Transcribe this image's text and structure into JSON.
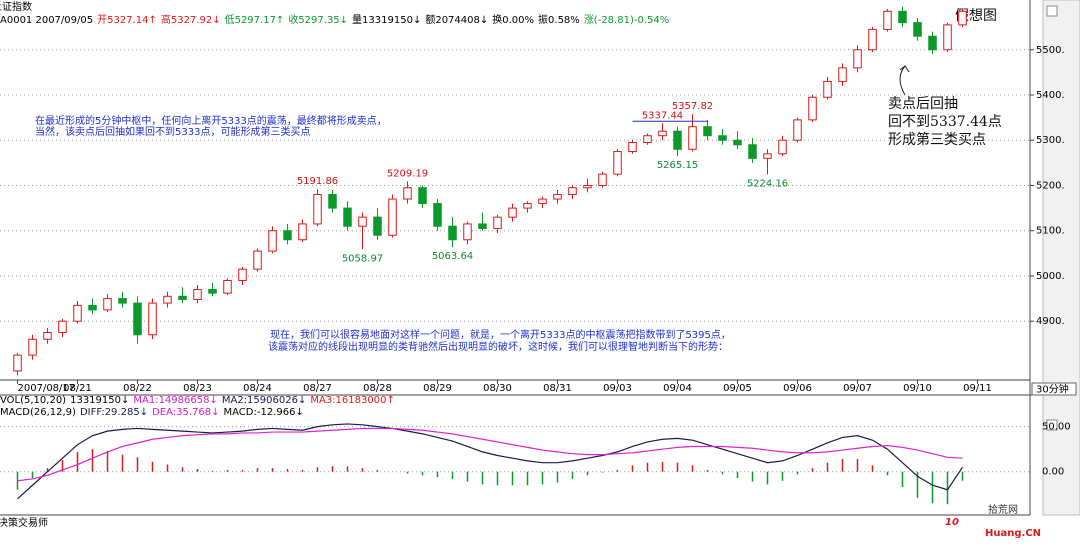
{
  "chart_data": [
    {
      "type": "candlestick",
      "title": "上证指数",
      "info": [
        "A0001 2007/09/05",
        "开5327.14↑",
        "高5327.92↓",
        "低5297.17↑",
        "收5297.35↓",
        "量13319150↓",
        "额2074408↓",
        "换0.00%",
        "振0.58%",
        "涨(-28.81)-0.54%"
      ],
      "x": [
        "2007/08/17",
        null,
        null,
        null,
        "08/21",
        null,
        null,
        null,
        "08/22",
        null,
        null,
        null,
        "08/23",
        null,
        null,
        null,
        "08/24",
        null,
        null,
        null,
        "08/27",
        null,
        null,
        null,
        "08/28",
        null,
        null,
        null,
        "08/29",
        null,
        null,
        null,
        "08/30",
        null,
        null,
        null,
        "08/31",
        null,
        null,
        null,
        "09/03",
        null,
        null,
        null,
        "09/04",
        null,
        null,
        null,
        "09/05",
        null,
        null,
        null,
        "09/06",
        null,
        null,
        null,
        "09/07",
        null,
        null,
        null,
        "09/10",
        null,
        null,
        null,
        "09/11",
        null,
        null,
        null
      ],
      "open": [
        4790,
        4825,
        4860,
        4875,
        4900,
        4935,
        4925,
        4950,
        4940,
        4870,
        4940,
        4955,
        4948,
        4970,
        4962,
        4990,
        5015,
        5055,
        5100,
        5080,
        5115,
        5180,
        5150,
        5110,
        5130,
        5090,
        5170,
        5195,
        5160,
        5110,
        5080,
        5115,
        5105,
        5130,
        5150,
        5160,
        5170,
        5180,
        5195,
        5200,
        5225,
        5275,
        5295,
        5310,
        5320,
        5280,
        5330,
        5310,
        5300,
        5290,
        5260,
        5270,
        5300,
        5345,
        5395,
        5430,
        5460,
        5500,
        5545,
        5585,
        5560,
        5530,
        5500,
        5555,
        null,
        null,
        null,
        null
      ],
      "high": [
        4830,
        4870,
        4885,
        4905,
        4945,
        4950,
        4960,
        4965,
        4955,
        4950,
        4965,
        4975,
        4980,
        4985,
        4995,
        5020,
        5060,
        5110,
        5115,
        5125,
        5191.86,
        5190,
        5165,
        5140,
        5150,
        5180,
        5209.19,
        5200,
        5170,
        5130,
        5120,
        5140,
        5135,
        5160,
        5165,
        5175,
        5190,
        5200,
        5215,
        5230,
        5280,
        5300,
        5315,
        5337.44,
        5330,
        5357.82,
        5345,
        5325,
        5320,
        5305,
        5280,
        5310,
        5350,
        5400,
        5440,
        5470,
        5510,
        5550,
        5590,
        5595,
        5570,
        5540,
        5560,
        5590,
        null,
        null,
        null,
        null
      ],
      "low": [
        4780,
        4815,
        4850,
        4865,
        4895,
        4915,
        4920,
        4930,
        4850,
        4860,
        4930,
        4940,
        4940,
        4955,
        4958,
        4980,
        5010,
        5050,
        5070,
        5075,
        5110,
        5140,
        5100,
        5058.97,
        5080,
        5085,
        5160,
        5150,
        5100,
        5063.64,
        5070,
        5100,
        5095,
        5120,
        5140,
        5150,
        5160,
        5170,
        5185,
        5195,
        5220,
        5270,
        5290,
        5300,
        5265.15,
        5275,
        5300,
        5290,
        5280,
        5250,
        5224.16,
        5265,
        5295,
        5340,
        5390,
        5420,
        5450,
        5495,
        5540,
        5550,
        5520,
        5490,
        5495,
        5550,
        null,
        null,
        null,
        null
      ],
      "close": [
        4825,
        4860,
        4875,
        4900,
        4935,
        4925,
        4950,
        4940,
        4870,
        4940,
        4955,
        4948,
        4970,
        4962,
        4990,
        5015,
        5055,
        5100,
        5080,
        5115,
        5180,
        5150,
        5110,
        5130,
        5090,
        5170,
        5195,
        5160,
        5110,
        5080,
        5115,
        5105,
        5130,
        5150,
        5160,
        5170,
        5180,
        5195,
        5200,
        5225,
        5275,
        5295,
        5310,
        5320,
        5280,
        5330,
        5310,
        5300,
        5290,
        5260,
        5270,
        5300,
        5345,
        5395,
        5430,
        5460,
        5500,
        5545,
        5585,
        5560,
        5530,
        5500,
        5555,
        5585,
        null,
        null,
        null,
        null
      ],
      "up_color": "#e01818",
      "down_color": "#0a9a2a",
      "ylim": [
        4770,
        5610
      ],
      "yticks": [
        {
          "value": 4900,
          "label": "4900."
        },
        {
          "value": 5000,
          "label": "5000."
        },
        {
          "value": 5100,
          "label": "5100."
        },
        {
          "value": 5200,
          "label": "5200."
        },
        {
          "value": 5300,
          "label": "5300."
        },
        {
          "value": 5400,
          "label": "5400."
        },
        {
          "value": 5500,
          "label": "5500."
        }
      ],
      "grid": true,
      "period": "30分钟",
      "watermark": "假想图",
      "notes": [
        "在最近形成的5分钟中枢中，任何向上离开5333点的震荡，最终都将形成卖点，",
        "当然，该卖点后回抽如果回不到5333点，可能形成第三类买点",
        "现在，我们可以很容易地面对这样一个问题，就是，一个离开5333点的中枢震荡把指数带到了5395点，",
        "该震荡对应的线段出现明显的类背驰然后出现明显的破坏，这时候，我们可以很理智地判断当下的形势："
      ],
      "annotation": [
        "卖点后回抽",
        "回不到5337.44点",
        "形成第三类买点"
      ]
    },
    {
      "type": "macd",
      "volume_info": [
        "VOL(5,10,20)",
        "13319150↓",
        "MA1:14986658↓",
        "MA2:15906026↓",
        "MA3:16183000↑"
      ],
      "info": [
        "MACD(26,12,9)",
        "DIFF:29.285↓",
        "DEA:35.768↓",
        "MACD:-12.966↓"
      ],
      "series": [
        {
          "name": "DIFF",
          "color": "#1a1a4a",
          "values": [
            -30,
            -15,
            0,
            15,
            30,
            40,
            45,
            47,
            48,
            47,
            46,
            45,
            44,
            43,
            44,
            45,
            47,
            48,
            47,
            46,
            50,
            52,
            53,
            52,
            50,
            48,
            45,
            42,
            38,
            34,
            28,
            22,
            18,
            15,
            12,
            10,
            10,
            12,
            15,
            18,
            22,
            28,
            33,
            36,
            37,
            35,
            30,
            25,
            20,
            15,
            10,
            12,
            18,
            25,
            32,
            38,
            40,
            35,
            25,
            10,
            -5,
            -15,
            -20,
            5
          ]
        },
        {
          "name": "DEA",
          "color": "#e020d0",
          "values": [
            -10,
            -8,
            -4,
            2,
            8,
            15,
            22,
            28,
            32,
            36,
            38,
            40,
            41,
            42,
            42,
            43,
            43,
            44,
            44,
            44,
            45,
            46,
            47,
            48,
            48,
            48,
            47,
            46,
            44,
            42,
            39,
            36,
            33,
            30,
            27,
            24,
            22,
            20,
            19,
            19,
            20,
            21,
            23,
            25,
            27,
            28,
            28,
            28,
            27,
            26,
            24,
            22,
            21,
            21,
            22,
            24,
            26,
            28,
            29,
            27,
            24,
            20,
            16,
            15
          ]
        }
      ],
      "macd": [
        -20,
        -7,
        4,
        13,
        22,
        25,
        23,
        19,
        16,
        11,
        8,
        5,
        3,
        1,
        2,
        2,
        4,
        4,
        3,
        2,
        5,
        6,
        6,
        4,
        2,
        0,
        -2,
        -4,
        -6,
        -8,
        -11,
        -14,
        -15,
        -15,
        -15,
        -14,
        -12,
        -8,
        -4,
        -1,
        2,
        7,
        10,
        11,
        10,
        7,
        2,
        -3,
        -7,
        -11,
        -14,
        -10,
        -3,
        4,
        10,
        14,
        14,
        7,
        -4,
        -17,
        -29,
        -35,
        -36,
        -10
      ],
      "ylim": [
        -48,
        74
      ],
      "yticks": [
        {
          "value": 0,
          "label": "0.00"
        },
        {
          "value": 50,
          "label": "50.00"
        }
      ]
    }
  ],
  "footer": {
    "brand": "决策交易师",
    "site_logo": "10",
    "site_name": "拾荒网",
    "site_url": "Huang.CN"
  }
}
